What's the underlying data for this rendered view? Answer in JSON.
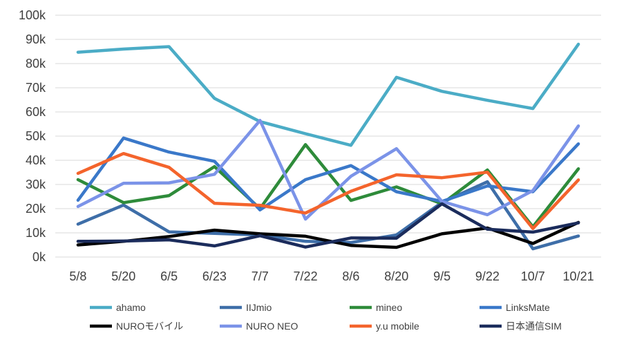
{
  "chart_data": {
    "type": "line",
    "title": "",
    "xlabel": "",
    "ylabel": "",
    "categories": [
      "5/8",
      "5/20",
      "6/5",
      "6/23",
      "7/7",
      "7/22",
      "8/6",
      "8/20",
      "9/5",
      "9/22",
      "10/7",
      "10/21"
    ],
    "ylim": [
      0,
      100000
    ],
    "yticks": [
      {
        "value": 0,
        "label": "0k"
      },
      {
        "value": 10000,
        "label": "10k"
      },
      {
        "value": 20000,
        "label": "20k"
      },
      {
        "value": 30000,
        "label": "30k"
      },
      {
        "value": 40000,
        "label": "40k"
      },
      {
        "value": 50000,
        "label": "50k"
      },
      {
        "value": 60000,
        "label": "60k"
      },
      {
        "value": 70000,
        "label": "70k"
      },
      {
        "value": 80000,
        "label": "80k"
      },
      {
        "value": 90000,
        "label": "90k"
      },
      {
        "value": 100000,
        "label": "100k"
      }
    ],
    "grid": true,
    "legend_position": "bottom",
    "series": [
      {
        "name": "ahamo",
        "color": "#4bacc6",
        "values": [
          84700,
          86000,
          87000,
          65600,
          56000,
          51000,
          46200,
          74300,
          68500,
          64800,
          61400,
          88000
        ]
      },
      {
        "name": "IIJmio",
        "color": "#3e6ea8",
        "values": [
          13600,
          21500,
          10400,
          9800,
          9100,
          6500,
          6000,
          9100,
          22600,
          31100,
          3400,
          8700
        ]
      },
      {
        "name": "mineo",
        "color": "#2e8b3a",
        "values": [
          32000,
          22500,
          25400,
          37400,
          20000,
          46500,
          23400,
          29000,
          22000,
          36000,
          12500,
          36500
        ]
      },
      {
        "name": "LinksMate",
        "color": "#3a78c9",
        "values": [
          23500,
          49200,
          43400,
          39600,
          19500,
          32000,
          37800,
          27000,
          23000,
          29400,
          27000,
          46800
        ]
      },
      {
        "name": "NUROモバイル",
        "color": "#000000",
        "values": [
          5000,
          6500,
          8500,
          11100,
          9600,
          8600,
          4800,
          4000,
          9600,
          12000,
          5600,
          14300
        ]
      },
      {
        "name": "NURO NEO",
        "color": "#7b93e8",
        "values": [
          20900,
          30500,
          30700,
          34200,
          56500,
          15700,
          33400,
          44800,
          23000,
          17500,
          27500,
          54200
        ]
      },
      {
        "name": "y.u mobile",
        "color": "#f4642c",
        "values": [
          34600,
          42800,
          37100,
          22200,
          21400,
          18200,
          27200,
          34000,
          32800,
          35100,
          11800,
          31900
        ]
      },
      {
        "name": "日本通信SIM",
        "color": "#1b2c5c",
        "values": [
          6500,
          6600,
          7100,
          4600,
          8800,
          4100,
          7900,
          7800,
          22000,
          11500,
          10300,
          14100
        ]
      }
    ]
  }
}
